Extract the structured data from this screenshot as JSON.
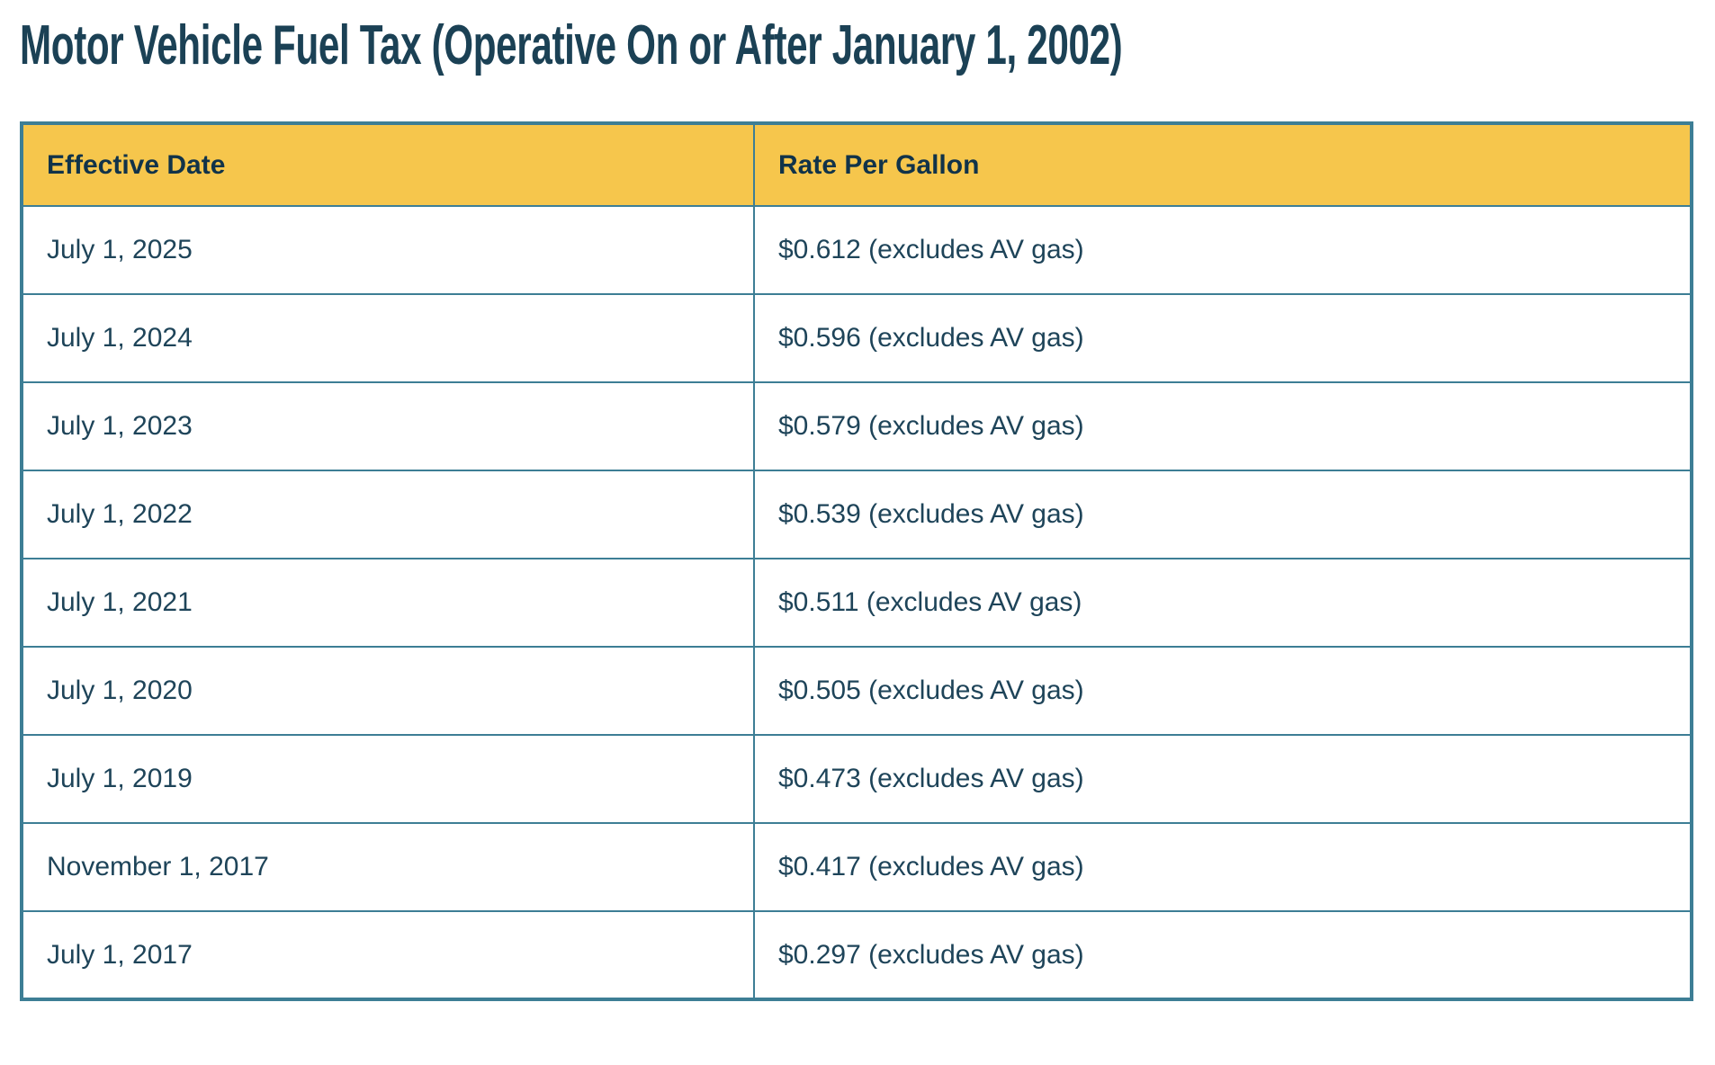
{
  "page": {
    "title": "Motor Vehicle Fuel Tax (Operative On or After January 1, 2002)"
  },
  "colors": {
    "header_bg": "#F6C64C",
    "border": "#3D7E95",
    "title_text": "#1B4155",
    "header_text": "#113349",
    "cell_text": "#1E4459"
  },
  "table": {
    "columns": [
      {
        "label": "Effective Date"
      },
      {
        "label": "Rate Per Gallon"
      }
    ],
    "rows": [
      {
        "date": "July 1, 2025",
        "rate": "$0.612 (excludes AV gas)"
      },
      {
        "date": "July 1, 2024",
        "rate": "$0.596 (excludes AV gas)"
      },
      {
        "date": "July 1, 2023",
        "rate": "$0.579 (excludes AV gas)"
      },
      {
        "date": "July 1, 2022",
        "rate": "$0.539 (excludes AV gas)"
      },
      {
        "date": "July 1, 2021",
        "rate": "$0.511 (excludes AV gas)"
      },
      {
        "date": "July 1, 2020",
        "rate": "$0.505 (excludes AV gas)"
      },
      {
        "date": "July 1, 2019",
        "rate": "$0.473 (excludes AV gas)"
      },
      {
        "date": "November 1, 2017",
        "rate": "$0.417 (excludes AV gas)"
      },
      {
        "date": "July 1, 2017",
        "rate": "$0.297 (excludes AV gas)"
      }
    ]
  }
}
